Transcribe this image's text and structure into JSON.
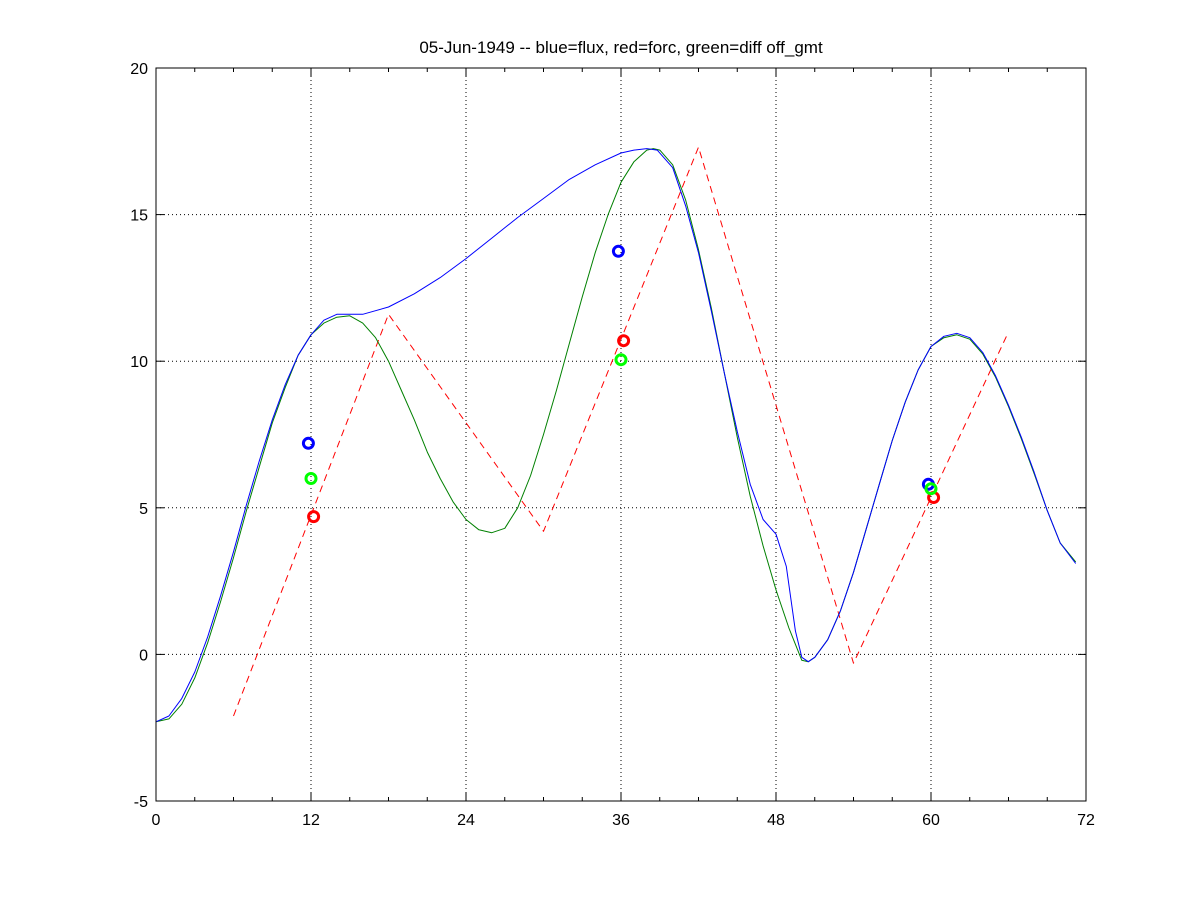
{
  "chart_data": {
    "type": "line",
    "title": "05-Jun-1949 -- blue=flux, red=forc, green=diff off_gmt",
    "xlabel": "",
    "ylabel": "",
    "xlim": [
      0,
      72
    ],
    "ylim": [
      -5,
      20
    ],
    "xticks": [
      0,
      12,
      24,
      36,
      48,
      60,
      72
    ],
    "yticks": [
      -5,
      0,
      5,
      10,
      15,
      20
    ],
    "grid": true,
    "series": [
      {
        "name": "flux",
        "color": "#0000ff",
        "style": "solid",
        "points": [
          [
            0,
            -2.3
          ],
          [
            1,
            -2.1
          ],
          [
            2,
            -1.5
          ],
          [
            3,
            -0.6
          ],
          [
            4,
            0.6
          ],
          [
            5,
            2.0
          ],
          [
            6,
            3.5
          ],
          [
            7,
            5.1
          ],
          [
            8,
            6.6
          ],
          [
            9,
            8.0
          ],
          [
            10,
            9.2
          ],
          [
            11,
            10.2
          ],
          [
            12,
            10.9
          ],
          [
            13,
            11.4
          ],
          [
            14,
            11.6
          ],
          [
            15,
            11.6
          ],
          [
            16,
            11.6
          ],
          [
            18,
            11.85
          ],
          [
            20,
            12.3
          ],
          [
            22,
            12.85
          ],
          [
            24,
            13.5
          ],
          [
            26,
            14.2
          ],
          [
            28,
            14.9
          ],
          [
            30,
            15.55
          ],
          [
            32,
            16.2
          ],
          [
            34,
            16.7
          ],
          [
            36,
            17.1
          ],
          [
            37,
            17.2
          ],
          [
            38,
            17.25
          ],
          [
            38.8,
            17.2
          ],
          [
            40,
            16.6
          ],
          [
            41,
            15.3
          ],
          [
            42,
            13.7
          ],
          [
            43,
            11.7
          ],
          [
            44,
            9.6
          ],
          [
            45,
            7.6
          ],
          [
            46,
            5.8
          ],
          [
            47,
            4.6
          ],
          [
            48,
            4.1
          ],
          [
            48.8,
            3.0
          ],
          [
            49.5,
            0.8
          ],
          [
            50,
            -0.1
          ],
          [
            50.5,
            -0.25
          ],
          [
            51,
            -0.1
          ],
          [
            52,
            0.5
          ],
          [
            53,
            1.5
          ],
          [
            54,
            2.8
          ],
          [
            55,
            4.3
          ],
          [
            56,
            5.8
          ],
          [
            57,
            7.3
          ],
          [
            58,
            8.6
          ],
          [
            59,
            9.7
          ],
          [
            60,
            10.5
          ],
          [
            61,
            10.85
          ],
          [
            62,
            10.95
          ],
          [
            63,
            10.8
          ],
          [
            64,
            10.3
          ],
          [
            65,
            9.5
          ],
          [
            66,
            8.5
          ],
          [
            67,
            7.4
          ],
          [
            68,
            6.2
          ],
          [
            69,
            4.9
          ],
          [
            70,
            3.8
          ],
          [
            71.2,
            3.1
          ]
        ]
      },
      {
        "name": "forc",
        "color": "#ff0000",
        "style": "dashed",
        "points": [
          [
            6,
            -2.1
          ],
          [
            18,
            11.6
          ],
          [
            30,
            4.2
          ],
          [
            42,
            17.3
          ],
          [
            54,
            -0.3
          ],
          [
            66,
            11.0
          ]
        ]
      },
      {
        "name": "diff",
        "color": "#008000",
        "style": "solid",
        "points": [
          [
            0,
            -2.3
          ],
          [
            1,
            -2.2
          ],
          [
            2,
            -1.7
          ],
          [
            3,
            -0.8
          ],
          [
            4,
            0.4
          ],
          [
            5,
            1.8
          ],
          [
            6,
            3.3
          ],
          [
            7,
            4.9
          ],
          [
            8,
            6.4
          ],
          [
            9,
            7.9
          ],
          [
            10,
            9.1
          ],
          [
            11,
            10.2
          ],
          [
            12,
            10.9
          ],
          [
            13,
            11.3
          ],
          [
            14,
            11.5
          ],
          [
            15,
            11.55
          ],
          [
            16,
            11.3
          ],
          [
            17,
            10.8
          ],
          [
            18,
            10.0
          ],
          [
            19,
            9.0
          ],
          [
            20,
            8.0
          ],
          [
            21,
            6.9
          ],
          [
            22,
            6.0
          ],
          [
            23,
            5.2
          ],
          [
            24,
            4.6
          ],
          [
            25,
            4.25
          ],
          [
            26,
            4.15
          ],
          [
            27,
            4.3
          ],
          [
            28,
            5.0
          ],
          [
            29,
            6.1
          ],
          [
            30,
            7.5
          ],
          [
            31,
            9.0
          ],
          [
            32,
            10.6
          ],
          [
            33,
            12.2
          ],
          [
            34,
            13.7
          ],
          [
            35,
            15.0
          ],
          [
            36,
            16.1
          ],
          [
            37,
            16.8
          ],
          [
            38,
            17.2
          ],
          [
            38.5,
            17.25
          ],
          [
            39,
            17.2
          ],
          [
            40,
            16.7
          ],
          [
            41,
            15.5
          ],
          [
            42,
            13.8
          ],
          [
            43,
            11.8
          ],
          [
            44,
            9.6
          ],
          [
            45,
            7.4
          ],
          [
            46,
            5.4
          ],
          [
            47,
            3.7
          ],
          [
            48,
            2.2
          ],
          [
            49,
            0.9
          ],
          [
            50,
            -0.2
          ],
          [
            50.5,
            -0.25
          ],
          [
            51,
            -0.1
          ],
          [
            52,
            0.5
          ],
          [
            53,
            1.5
          ],
          [
            54,
            2.8
          ],
          [
            55,
            4.3
          ],
          [
            56,
            5.8
          ],
          [
            57,
            7.3
          ],
          [
            58,
            8.6
          ],
          [
            59,
            9.7
          ],
          [
            60,
            10.5
          ],
          [
            61,
            10.8
          ],
          [
            62,
            10.9
          ],
          [
            63,
            10.75
          ],
          [
            64,
            10.25
          ],
          [
            65,
            9.45
          ],
          [
            66,
            8.45
          ],
          [
            67,
            7.35
          ],
          [
            68,
            6.15
          ],
          [
            69,
            4.9
          ],
          [
            70,
            3.8
          ],
          [
            71.2,
            3.15
          ]
        ]
      }
    ],
    "markers": [
      {
        "series": "flux",
        "color": "#0000ff",
        "points": [
          [
            11.8,
            7.2
          ],
          [
            35.8,
            13.75
          ],
          [
            59.8,
            5.8
          ]
        ]
      },
      {
        "series": "forc",
        "color": "#ff0000",
        "points": [
          [
            12.2,
            4.7
          ],
          [
            36.2,
            10.7
          ],
          [
            60.2,
            5.35
          ]
        ]
      },
      {
        "series": "diff",
        "color": "#00ff00",
        "points": [
          [
            12.0,
            6.0
          ],
          [
            36.0,
            10.05
          ],
          [
            60.0,
            5.65
          ]
        ]
      }
    ]
  }
}
